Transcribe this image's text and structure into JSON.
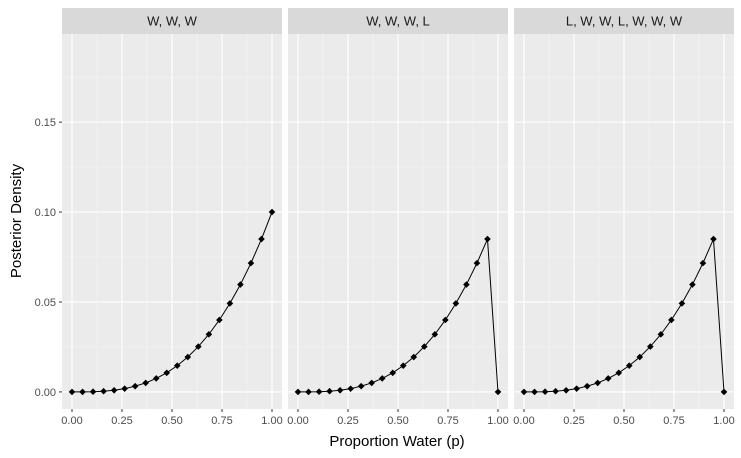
{
  "chart_data": {
    "type": "line",
    "xlabel": "Proportion Water (p)",
    "ylabel": "Posterior Density",
    "xlim": [
      -0.05,
      1.05
    ],
    "ylim": [
      -0.0095,
      0.199
    ],
    "x_ticks": [
      "0.00",
      "0.25",
      "0.50",
      "0.75",
      "1.00"
    ],
    "y_ticks": [
      "0.00",
      "0.05",
      "0.10",
      "0.15"
    ],
    "x_tick_values": [
      0,
      0.25,
      0.5,
      0.75,
      1
    ],
    "y_tick_values": [
      0,
      0.05,
      0.1,
      0.15
    ],
    "grid": true,
    "colors": {
      "panel": "#ebebeb",
      "strip": "#d9d9d9",
      "grid_major": "#ffffff",
      "line": "#000000"
    },
    "x": [
      0,
      0.0526,
      0.1053,
      0.1579,
      0.2105,
      0.2632,
      0.3158,
      0.3684,
      0.4211,
      0.4737,
      0.5263,
      0.5789,
      0.6316,
      0.6842,
      0.7368,
      0.7895,
      0.8421,
      0.8947,
      0.9474,
      1
    ],
    "panels": [
      {
        "label": "W, W, W",
        "values": [
          0.0,
          0.0,
          0.0001,
          0.0004,
          0.0009,
          0.0018,
          0.0032,
          0.005,
          0.0075,
          0.0106,
          0.0146,
          0.0194,
          0.0252,
          0.032,
          0.04,
          0.0492,
          0.0597,
          0.0716,
          0.085,
          0.1
        ]
      },
      {
        "label": "W, W, W, L",
        "values": [
          0.0,
          0.0,
          0.0001,
          0.0004,
          0.0009,
          0.0018,
          0.0032,
          0.005,
          0.0075,
          0.0106,
          0.0146,
          0.0194,
          0.0252,
          0.032,
          0.04,
          0.0492,
          0.0597,
          0.0716,
          0.085,
          0.0
        ]
      },
      {
        "label": "L, W, W, L, W, W, W",
        "values": [
          0.0,
          0.0,
          0.0001,
          0.0004,
          0.0009,
          0.0018,
          0.0032,
          0.005,
          0.0075,
          0.0106,
          0.0146,
          0.0194,
          0.0252,
          0.032,
          0.04,
          0.0492,
          0.0597,
          0.0716,
          0.085,
          0.0
        ]
      }
    ]
  }
}
